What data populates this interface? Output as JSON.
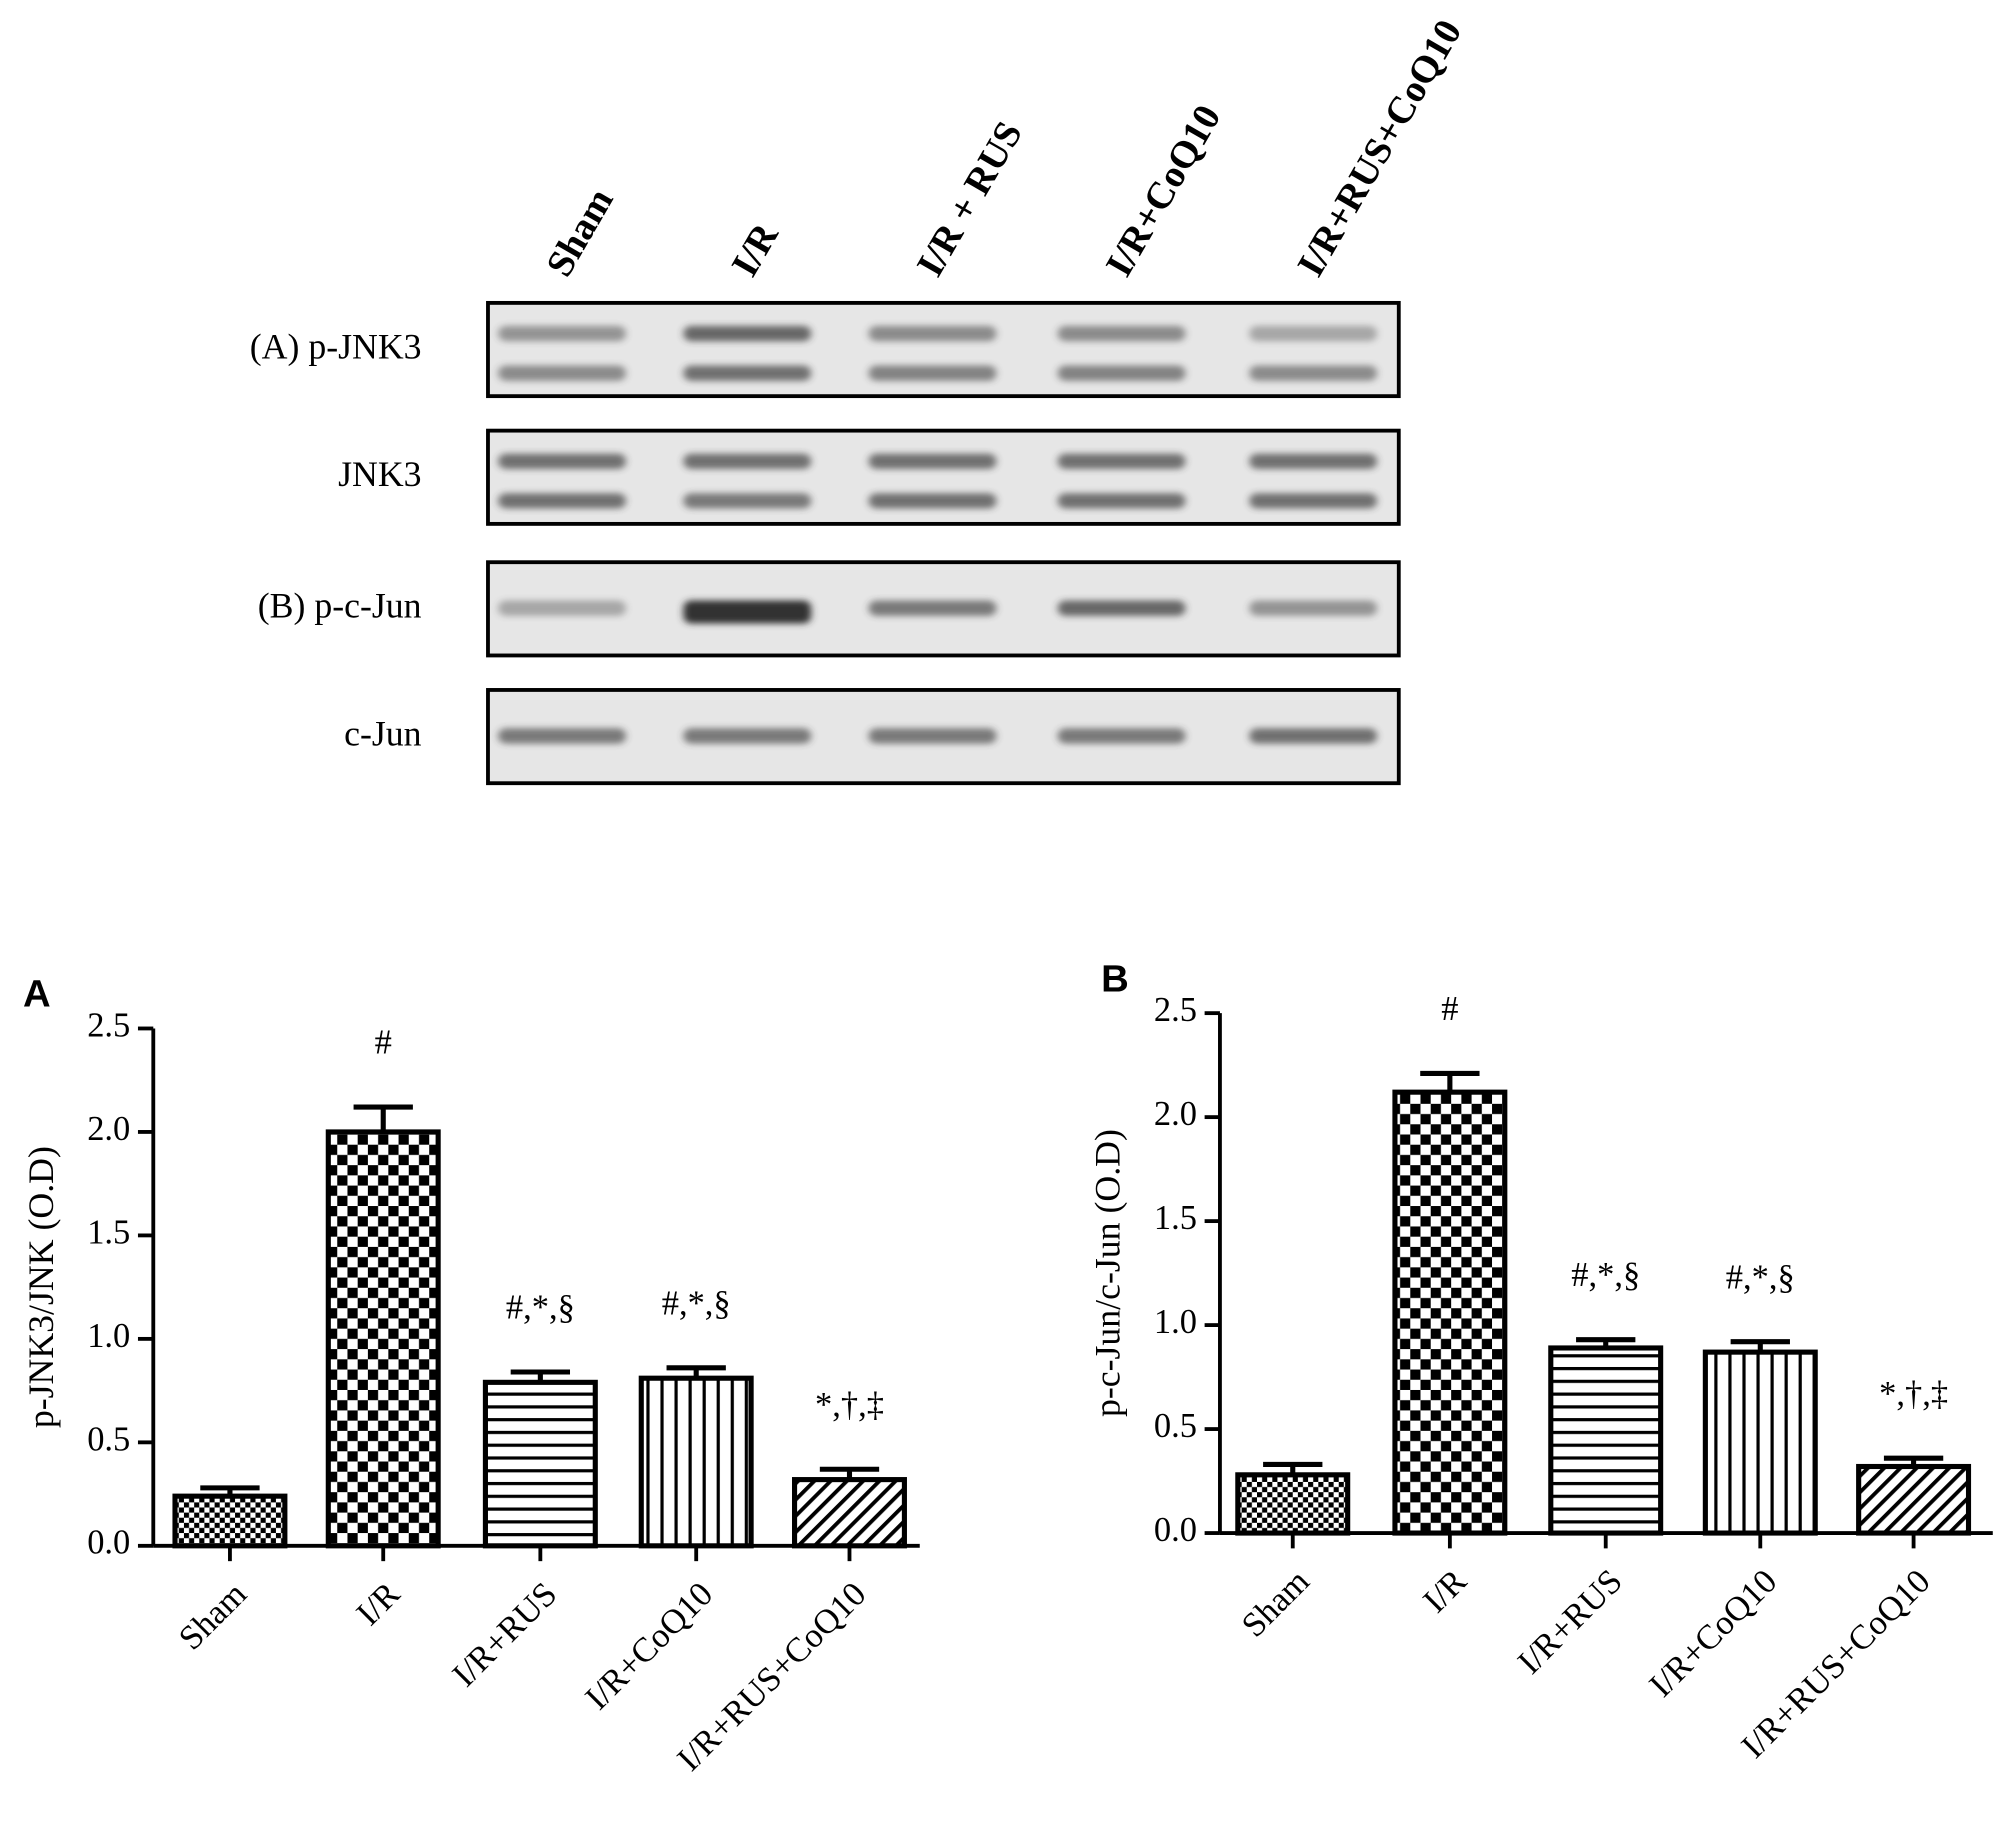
{
  "blot": {
    "lanes": [
      "Sham",
      "I/R",
      "I/R + RUS",
      "I/R+CoQ10",
      "I/R+RUS+CoQ10"
    ],
    "rows": [
      "(A) p-JNK3",
      "JNK3",
      "(B) p-c-Jun",
      "c-Jun"
    ]
  },
  "chart_data": [
    {
      "type": "bar",
      "panel": "A",
      "ylabel": "p-JNK3/JNK (O.D)",
      "categories": [
        "Sham",
        "I/R",
        "I/R+RUS",
        "I/R+CoQ10",
        "I/R+RUS+CoQ10"
      ],
      "values": [
        0.24,
        2.0,
        0.79,
        0.81,
        0.32
      ],
      "errors": [
        0.04,
        0.12,
        0.05,
        0.05,
        0.05
      ],
      "annotations": [
        null,
        "#",
        "#,*,§",
        "#,*,§",
        "*,†,‡"
      ],
      "color": "#000000",
      "ylim": [
        0,
        2.5
      ],
      "yticks": [
        {
          "value": 0,
          "label": "0.0"
        },
        0.5,
        {
          "value": 1,
          "label": "1.0"
        },
        1.5,
        {
          "value": 2,
          "label": "2.0"
        },
        2.5
      ]
    },
    {
      "type": "bar",
      "panel": "B",
      "ylabel": "p-c-Jun/c-Jun (O.D)",
      "categories": [
        "Sham",
        "I/R",
        "I/R+RUS",
        "I/R+CoQ10",
        "I/R+RUS+CoQ10"
      ],
      "values": [
        0.28,
        2.12,
        0.89,
        0.87,
        0.32
      ],
      "errors": [
        0.05,
        0.09,
        0.04,
        0.05,
        0.04
      ],
      "annotations": [
        null,
        "#",
        "#,*,§",
        "#,*,§",
        "*,†,‡"
      ],
      "color": "#000000",
      "ylim": [
        0,
        2.5
      ],
      "yticks": [
        {
          "value": 0,
          "label": "0.0"
        },
        0.5,
        {
          "value": 1,
          "label": "1.0"
        },
        1.5,
        {
          "value": 2,
          "label": "2.0"
        },
        2.5
      ]
    }
  ]
}
